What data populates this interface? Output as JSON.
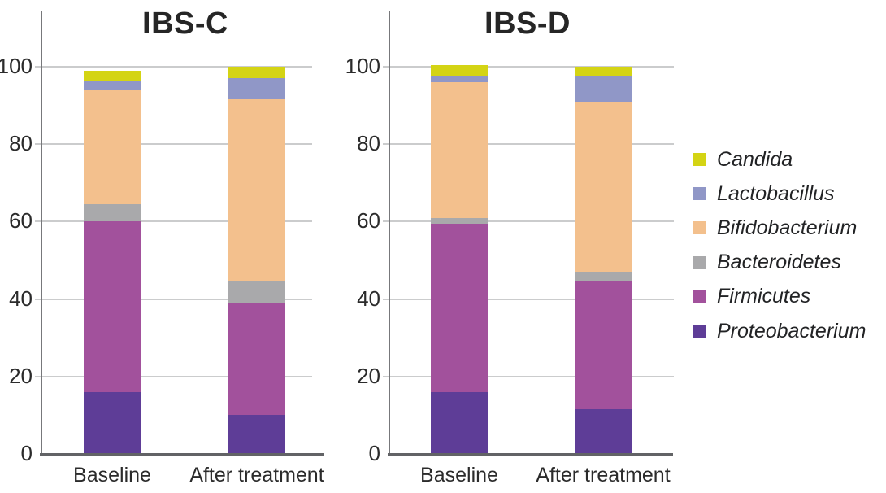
{
  "chart_data": {
    "type": "bar",
    "stacked": true,
    "grid": true,
    "ylim": [
      0,
      100
    ],
    "yticks": [
      0,
      20,
      40,
      60,
      80,
      100
    ],
    "categories": [
      "Baseline",
      "After treatment"
    ],
    "stack_order_bottom_to_top": [
      "Proteobacterium",
      "Firmicutes",
      "Bacteroidetes",
      "Bifidobacterium",
      "Lactobacillus",
      "Candida"
    ],
    "panels": [
      {
        "title": "IBS-C",
        "series": [
          {
            "name": "Proteobacterium",
            "values": [
              16,
              10
            ]
          },
          {
            "name": "Firmicutes",
            "values": [
              44,
              29
            ]
          },
          {
            "name": "Bacteroidetes",
            "values": [
              4.5,
              5.5
            ]
          },
          {
            "name": "Bifidobacterium",
            "values": [
              29.5,
              47
            ]
          },
          {
            "name": "Lactobacillus",
            "values": [
              2.5,
              5.5
            ]
          },
          {
            "name": "Candida",
            "values": [
              2.5,
              3
            ]
          }
        ]
      },
      {
        "title": "IBS-D",
        "series": [
          {
            "name": "Proteobacterium",
            "values": [
              16,
              11.5
            ]
          },
          {
            "name": "Firmicutes",
            "values": [
              43.5,
              33
            ]
          },
          {
            "name": "Bacteroidetes",
            "values": [
              1.5,
              2.5
            ]
          },
          {
            "name": "Bifidobacterium",
            "values": [
              35,
              44
            ]
          },
          {
            "name": "Lactobacillus",
            "values": [
              1.5,
              6.5
            ]
          },
          {
            "name": "Candida",
            "values": [
              3,
              2.5
            ]
          }
        ]
      }
    ],
    "legend": {
      "position": "right",
      "items": [
        "Candida",
        "Lactobacillus",
        "Bifidobacterium",
        "Bacteroidetes",
        "Firmicutes",
        "Proteobacterium"
      ]
    },
    "colors": {
      "Candida": "#d4d414",
      "Lactobacillus": "#9097c7",
      "Bifidobacterium": "#f3c08d",
      "Bacteroidetes": "#a9a9ab",
      "Firmicutes": "#a2519c",
      "Proteobacterium": "#5e3d97"
    },
    "style": {
      "gridline_color": "#cbcccd",
      "axis_color": "#626366",
      "text_color": "#2b2b2b",
      "background": "#ffffff"
    }
  }
}
